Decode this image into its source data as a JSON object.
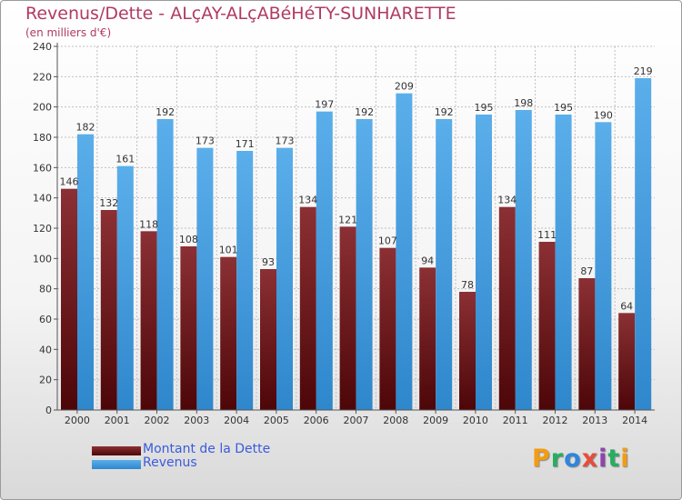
{
  "header": {
    "title": "Revenus/Dette - ALçAY-ALçABéHéTY-SUNHARETTE",
    "subtitle": "(en milliers d'€)"
  },
  "logo": {
    "letters": [
      {
        "char": "P",
        "color": "#f39c12"
      },
      {
        "char": "r",
        "color": "#27ae60"
      },
      {
        "char": "o",
        "color": "#2e86de"
      },
      {
        "char": "x",
        "color": "#e74c3c"
      },
      {
        "char": "i",
        "color": "#8e44ad"
      },
      {
        "char": "t",
        "color": "#27ae60"
      },
      {
        "char": "i",
        "color": "#f39c12"
      }
    ]
  },
  "colors": {
    "dette_top": "#8b3034",
    "dette_bottom": "#4d0608",
    "revenus_top": "#5aaeea",
    "revenus_bottom": "#2f87cc",
    "grid": "#c0c0c0",
    "axis": "#555555"
  },
  "chart_data": {
    "type": "bar",
    "title": "Revenus/Dette - ALçAY-ALçABéHéTY-SUNHARETTE",
    "ylabel": "(en milliers d'€)",
    "xlabel": "",
    "ylim": [
      0,
      240
    ],
    "ytick_step": 20,
    "grid": true,
    "legend_position": "bottom-left",
    "categories": [
      "2000",
      "2001",
      "2002",
      "2003",
      "2004",
      "2005",
      "2006",
      "2007",
      "2008",
      "2009",
      "2010",
      "2011",
      "2012",
      "2013",
      "2014"
    ],
    "series": [
      {
        "name": "Montant de la Dette",
        "values": [
          146,
          132,
          118,
          108,
          101,
          93,
          134,
          121,
          107,
          94,
          78,
          134,
          111,
          87,
          64
        ]
      },
      {
        "name": "Revenus",
        "values": [
          182,
          161,
          192,
          173,
          171,
          173,
          197,
          192,
          209,
          192,
          195,
          198,
          195,
          190,
          219
        ]
      }
    ]
  }
}
